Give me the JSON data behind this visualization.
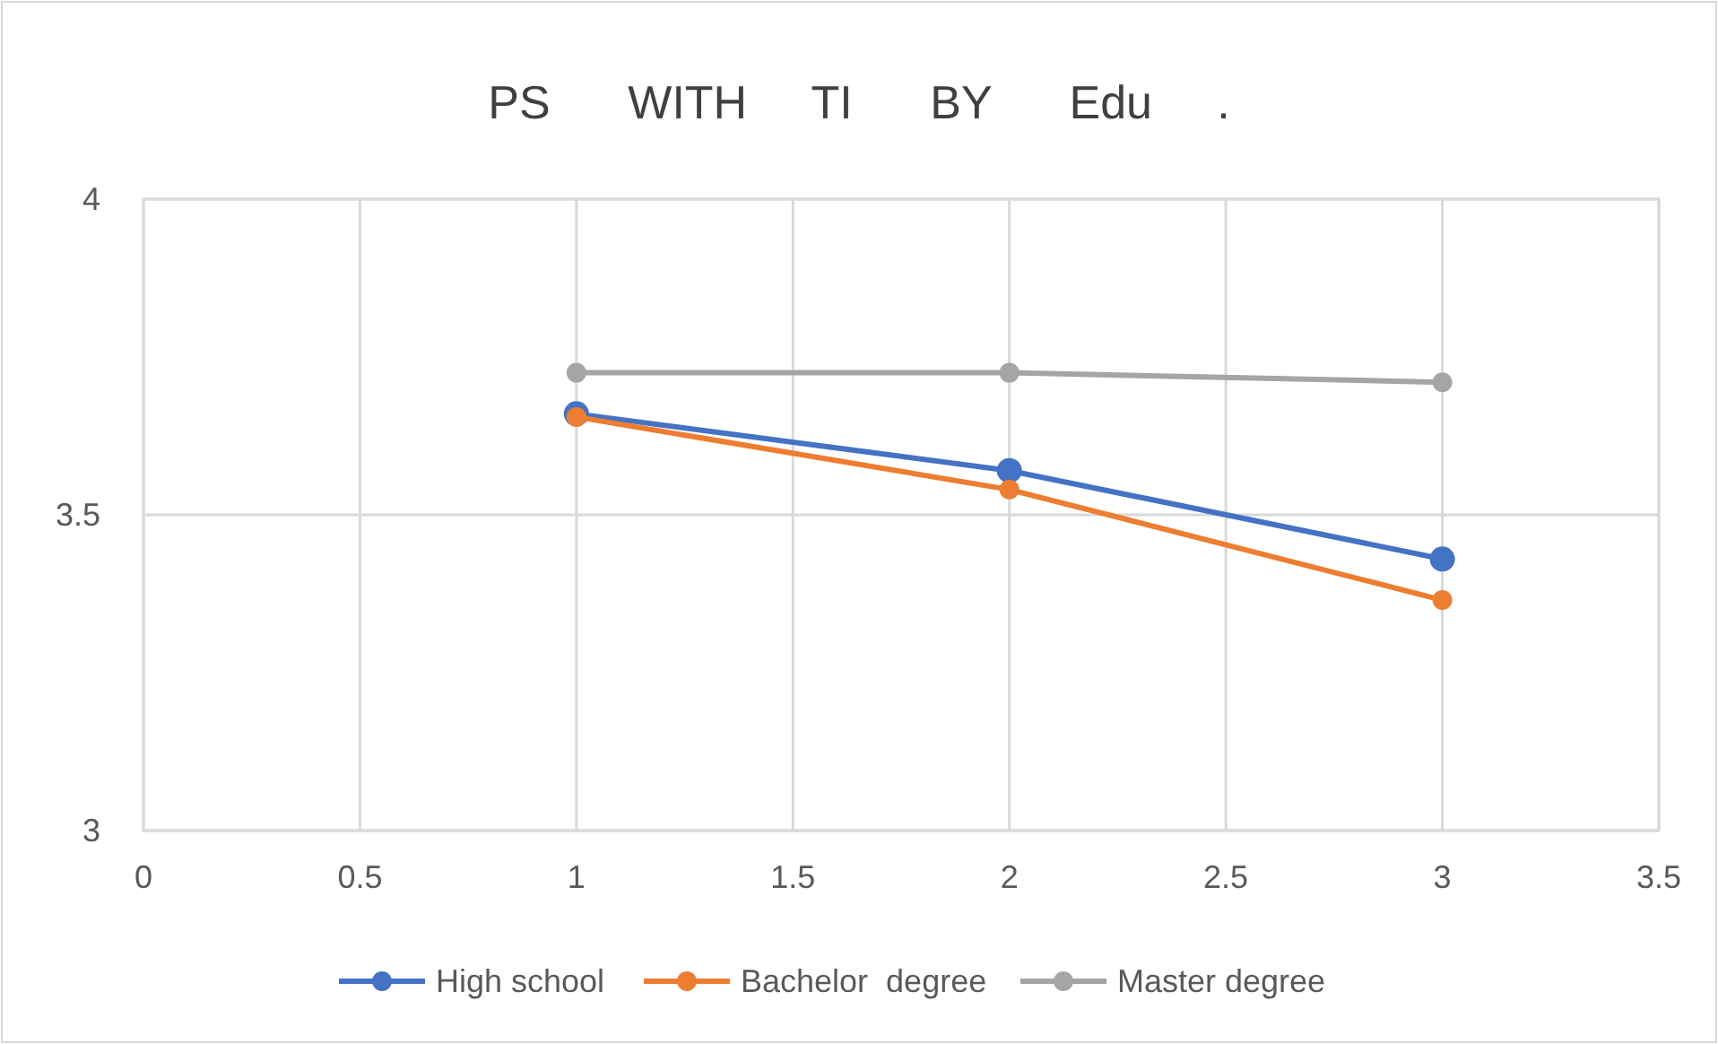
{
  "chart_data": {
    "type": "line",
    "title": "PS      WITH     TI      BY      Edu     .",
    "x": [
      1,
      2,
      3
    ],
    "series": [
      {
        "name": "High school",
        "color": "#4472c4",
        "values": [
          3.66,
          3.57,
          3.43
        ]
      },
      {
        "name": "Bachelor  degree",
        "color": "#ed7d31",
        "values": [
          3.655,
          3.54,
          3.365
        ]
      },
      {
        "name": "Master degree",
        "color": "#a5a5a5",
        "values": [
          3.725,
          3.725,
          3.71
        ]
      }
    ],
    "xlim": [
      0,
      3.5
    ],
    "xticks": [
      0,
      0.5,
      1,
      1.5,
      2,
      2.5,
      3,
      3.5
    ],
    "ylim": [
      3,
      4
    ],
    "yticks": [
      3,
      3.5,
      4
    ],
    "grid": true,
    "legend": "bottom",
    "marker": "circle",
    "line_style": "solid"
  }
}
